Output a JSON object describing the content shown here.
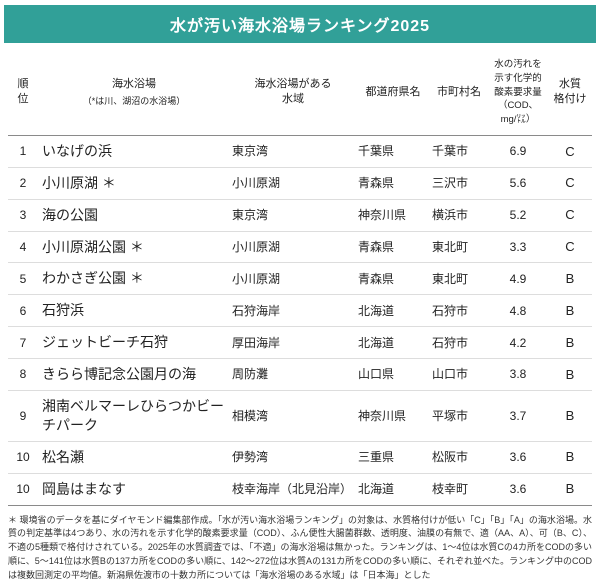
{
  "accent_color": "#31a098",
  "title": "水が汚い海水浴場ランキング2025",
  "header": {
    "rank": "順\n位",
    "beach_line1": "海水浴場",
    "beach_line2": "（*は川、湖沼の水浴場）",
    "area": "海水浴場がある\n水域",
    "pref": "都道府県名",
    "city": "市町村名",
    "cod": "水の汚れを\n示す化学的\n酸素要求量\n（COD、\nmg/㍑）",
    "grade": "水質\n格付け"
  },
  "chart_data": {
    "type": "table",
    "title": "水が汚い海水浴場ランキング2025",
    "columns": [
      "順位",
      "海水浴場（*は川、湖沼の水浴場）",
      "海水浴場がある水域",
      "都道府県名",
      "市町村名",
      "水の汚れを示す化学的酸素要求量（COD、mg/㍑）",
      "水質格付け"
    ],
    "rows": [
      [
        "1",
        "いなげの浜",
        "東京湾",
        "千葉県",
        "千葉市",
        "6.9",
        "C"
      ],
      [
        "2",
        "小川原湖 ＊",
        "小川原湖",
        "青森県",
        "三沢市",
        "5.6",
        "C"
      ],
      [
        "3",
        "海の公園",
        "東京湾",
        "神奈川県",
        "横浜市",
        "5.2",
        "C"
      ],
      [
        "4",
        "小川原湖公園 ＊",
        "小川原湖",
        "青森県",
        "東北町",
        "3.3",
        "C"
      ],
      [
        "5",
        "わかさぎ公園 ＊",
        "小川原湖",
        "青森県",
        "東北町",
        "4.9",
        "B"
      ],
      [
        "6",
        "石狩浜",
        "石狩海岸",
        "北海道",
        "石狩市",
        "4.8",
        "B"
      ],
      [
        "7",
        "ジェットビーチ石狩",
        "厚田海岸",
        "北海道",
        "石狩市",
        "4.2",
        "B"
      ],
      [
        "8",
        "きらら博記念公園月の海",
        "周防灘",
        "山口県",
        "山口市",
        "3.8",
        "B"
      ],
      [
        "9",
        "湘南ベルマーレひらつかビーチパーク",
        "相模湾",
        "神奈川県",
        "平塚市",
        "3.7",
        "B"
      ],
      [
        "10",
        "松名瀬",
        "伊勢湾",
        "三重県",
        "松阪市",
        "3.6",
        "B"
      ],
      [
        "10",
        "岡島はまなす",
        "枝幸海岸（北見沿岸）",
        "北海道",
        "枝幸町",
        "3.6",
        "B"
      ]
    ]
  },
  "footnote": "＊ 環境省のデータを基にダイヤモンド編集部作成。「水が汚い海水浴場ランキング」の対象は、水質格付けが低い「C」「B」「A」の海水浴場。水質の判定基準は4つあり、水の汚れを示す化学的酸素要求量（COD）、ふん便性大腸菌群数、透明度、油膜の有無で、適（AA、A）、可（B、C）、不適の5種類で格付けされている。2025年の水質調査では、「不適」の海水浴場は無かった。ランキングは、1～4位は水質Cの4カ所をCODの多い順に、5～141位は水質Bの137カ所をCODの多い順に、142～272位は水質Aの131カ所をCODの多い順に、それぞれ並べた。ランキング中のCODは複数回測定の平均値。新潟県佐渡市の十数カ所については「海水浴場のある水域」は「日本海」とした"
}
